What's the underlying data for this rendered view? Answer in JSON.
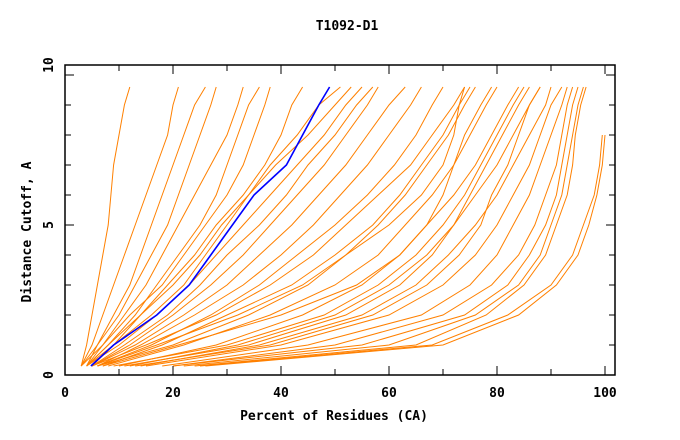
{
  "chart_data": {
    "type": "line",
    "title": "T1092-D1",
    "xlabel": "Percent of Residues (CA)",
    "ylabel": "Distance Cutoff, A",
    "xlim": [
      0,
      100
    ],
    "ylim": [
      0,
      10
    ],
    "x_ticks": [
      "0",
      "20",
      "40",
      "60",
      "80",
      "100"
    ],
    "y_ticks": [
      "0",
      "5",
      "10"
    ],
    "grid": false,
    "y_levels": [
      0.3,
      1,
      2,
      3,
      4,
      5,
      6,
      7,
      8,
      9,
      9.6
    ],
    "series_color": "#ff8000",
    "highlight_color": "#0000ff",
    "series": [
      [
        3,
        4,
        5,
        6,
        7,
        8,
        8.5,
        9,
        10,
        11,
        12
      ],
      [
        3,
        5,
        7,
        9,
        11,
        13,
        15,
        17,
        19,
        20,
        21
      ],
      [
        4,
        6,
        9,
        12,
        14,
        16,
        18,
        20,
        22,
        24,
        26
      ],
      [
        3,
        6,
        10,
        13,
        16,
        19,
        21,
        23,
        25,
        27,
        28
      ],
      [
        4,
        7,
        11,
        15,
        18,
        21,
        24,
        27,
        30,
        32,
        33
      ],
      [
        4,
        8,
        13,
        17,
        21,
        25,
        28,
        30,
        32,
        34,
        36
      ],
      [
        3,
        7,
        12,
        18,
        22,
        26,
        30,
        33,
        35,
        37,
        38
      ],
      [
        5,
        9,
        14,
        19,
        24,
        28,
        33,
        37,
        40,
        42,
        44
      ],
      [
        4,
        10,
        17,
        23,
        28,
        33,
        38,
        43,
        48,
        52,
        55
      ],
      [
        5,
        12,
        20,
        27,
        33,
        38,
        43,
        48,
        52,
        56,
        58
      ],
      [
        5,
        13,
        22,
        30,
        36,
        42,
        47,
        52,
        56,
        60,
        63
      ],
      [
        6,
        14,
        24,
        33,
        40,
        46,
        51,
        56,
        60,
        64,
        66
      ],
      [
        6,
        16,
        27,
        36,
        43,
        50,
        56,
        61,
        65,
        68,
        70
      ],
      [
        5,
        15,
        28,
        38,
        46,
        52,
        58,
        64,
        68,
        72,
        74
      ],
      [
        7,
        18,
        30,
        42,
        50,
        57,
        62,
        66,
        70,
        73,
        75
      ],
      [
        6,
        20,
        34,
        45,
        52,
        58,
        63,
        67,
        71,
        74,
        76
      ],
      [
        8,
        22,
        38,
        50,
        58,
        63,
        68,
        72,
        75,
        78,
        80
      ],
      [
        9,
        30,
        48,
        58,
        65,
        70,
        74,
        77,
        80,
        83,
        85
      ],
      [
        10,
        28,
        44,
        55,
        62,
        67,
        72,
        76,
        79,
        82,
        84
      ],
      [
        11,
        34,
        52,
        62,
        68,
        72,
        75,
        78,
        81,
        84,
        86
      ],
      [
        12,
        32,
        50,
        60,
        67,
        72,
        76,
        80,
        83,
        86,
        88
      ],
      [
        13,
        38,
        57,
        67,
        73,
        77,
        79,
        82,
        84,
        86,
        88
      ],
      [
        14,
        36,
        55,
        65,
        71,
        76,
        80,
        83,
        86,
        89,
        90
      ],
      [
        15,
        40,
        60,
        70,
        76,
        80,
        83,
        86,
        88,
        90,
        92
      ],
      [
        18,
        45,
        66,
        75,
        80,
        83,
        86,
        88,
        90,
        92,
        93
      ],
      [
        20,
        50,
        70,
        79,
        84,
        87,
        89,
        91,
        92,
        93,
        94
      ],
      [
        20,
        55,
        74,
        82,
        86,
        89,
        91,
        92,
        93,
        94,
        95
      ],
      [
        22,
        60,
        76,
        84,
        88,
        90,
        92,
        93,
        94,
        95,
        96
      ],
      [
        24,
        65,
        78,
        85,
        89,
        91,
        93,
        94,
        94.5,
        95.5,
        96.5
      ],
      [
        25,
        68,
        82,
        90,
        94,
        96,
        98,
        99,
        99.5,
        null,
        null
      ],
      [
        26,
        70,
        84,
        91,
        95,
        97,
        98.5,
        99.5,
        100,
        null,
        null
      ],
      [
        4,
        9,
        16,
        22,
        26,
        30,
        34,
        38,
        43,
        47,
        51
      ],
      [
        5,
        11,
        19,
        25,
        30,
        36,
        41,
        45,
        50,
        54,
        57
      ],
      [
        4,
        8,
        14,
        20,
        25,
        29,
        34,
        39,
        45,
        50,
        53
      ],
      [
        6,
        17,
        32,
        44,
        52,
        60,
        66,
        70,
        72,
        73,
        74
      ],
      [
        7,
        21,
        40,
        54,
        62,
        67,
        70,
        72,
        74,
        77,
        79
      ]
    ],
    "highlight": [
      4.8,
      9,
      17,
      23,
      27,
      31,
      35,
      41,
      44,
      47,
      49
    ]
  }
}
